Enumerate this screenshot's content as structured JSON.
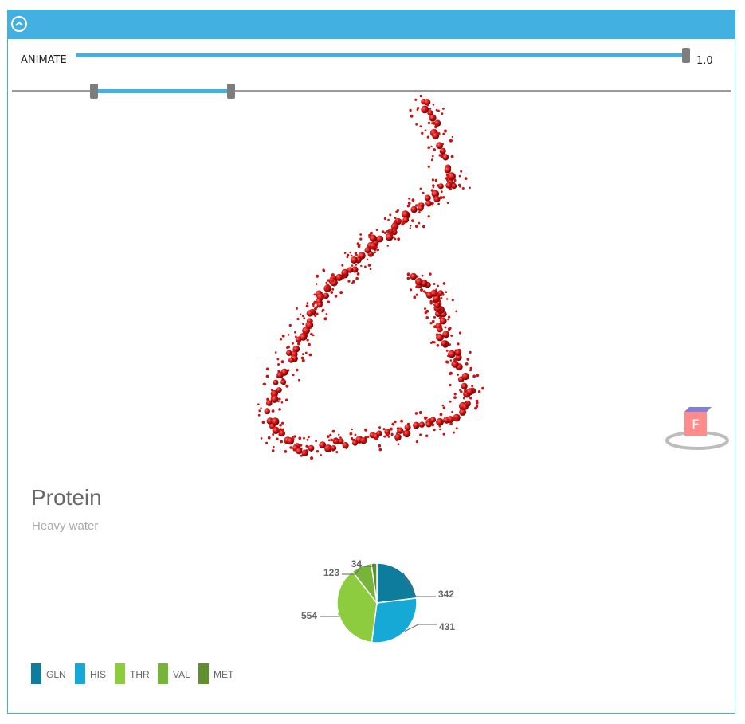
{
  "header": {
    "collapse_icon": "chevron-up-icon"
  },
  "animate": {
    "label": "ANIMATE",
    "value": "1.0",
    "fraction": 1.0
  },
  "range": {
    "low_fraction": 0.12,
    "high_fraction": 0.31
  },
  "viewport": {
    "nav_cube_label": "F"
  },
  "chart": {
    "title": "Protein",
    "subtitle": "Heavy water"
  },
  "colors": {
    "accent": "#42b0e0",
    "atom": "#cc1111"
  },
  "chart_data": {
    "type": "pie",
    "title": "Protein",
    "subtitle": "Heavy water",
    "categories": [
      "GLN",
      "HIS",
      "THR",
      "VAL",
      "MET"
    ],
    "values": [
      342,
      431,
      554,
      123,
      34
    ],
    "colors": [
      "#0e7c9c",
      "#17a9d6",
      "#8ccc3e",
      "#77b53a",
      "#5f8f2f"
    ],
    "legend": "bottom-left"
  }
}
